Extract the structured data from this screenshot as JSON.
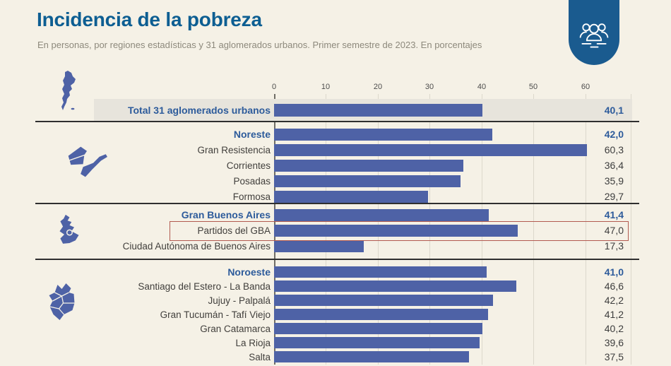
{
  "header": {
    "title": "Incidencia de la pobreza",
    "subtitle": "En personas, por regiones estadísticas y 31 aglomerados urbanos. Primer semestre de 2023. En porcentajes",
    "badge_icon": "people-group-icon"
  },
  "chart_data": {
    "type": "bar",
    "orientation": "horizontal",
    "title": "Incidencia de la pobreza",
    "subtitle": "En personas, por regiones estadísticas y 31 aglomerados urbanos. Primer semestre de 2023. En porcentajes",
    "unit": "percent",
    "xlim": [
      0,
      67
    ],
    "grid": true,
    "ticks": [
      "0",
      "10",
      "20",
      "30",
      "40",
      "50",
      "60"
    ],
    "total": {
      "label": "Total 31 aglomerados urbanos",
      "value": 40.1,
      "display": "40,1",
      "emphasis": true
    },
    "sections": [
      {
        "region": "Noreste",
        "rows": [
          {
            "label": "Noreste",
            "value": 42.0,
            "display": "42,0",
            "emphasis": true
          },
          {
            "label": "Gran Resistencia",
            "value": 60.3,
            "display": "60,3"
          },
          {
            "label": "Corrientes",
            "value": 36.4,
            "display": "36,4"
          },
          {
            "label": "Posadas",
            "value": 35.9,
            "display": "35,9"
          },
          {
            "label": "Formosa",
            "value": 29.7,
            "display": "29,7"
          }
        ]
      },
      {
        "region": "Gran Buenos Aires",
        "highlighted_row": "Partidos del GBA",
        "rows": [
          {
            "label": "Gran Buenos Aires",
            "value": 41.4,
            "display": "41,4",
            "emphasis": true
          },
          {
            "label": "Partidos del GBA",
            "value": 47.0,
            "display": "47,0",
            "highlighted": true
          },
          {
            "label": "Ciudad Autónoma de Buenos Aires",
            "value": 17.3,
            "display": "17,3"
          }
        ]
      },
      {
        "region": "Noroeste",
        "rows": [
          {
            "label": "Noroeste",
            "value": 41.0,
            "display": "41,0",
            "emphasis": true
          },
          {
            "label": "Santiago del Estero - La Banda",
            "value": 46.6,
            "display": "46,6"
          },
          {
            "label": "Jujuy -  Palpalá",
            "value": 42.2,
            "display": "42,2"
          },
          {
            "label": "Gran Tucumán - Tafí Viejo",
            "value": 41.2,
            "display": "41,2"
          },
          {
            "label": "Gran Catamarca",
            "value": 40.2,
            "display": "40,2"
          },
          {
            "label": "La Rioja",
            "value": 39.6,
            "display": "39,6"
          },
          {
            "label": "Salta",
            "value": 37.5,
            "display": "37,5"
          }
        ]
      }
    ],
    "icons": [
      "argentina-map-icon",
      "noreste-region-map-icon",
      "gba-region-map-icon",
      "noroeste-region-map-icon",
      "people-group-icon"
    ],
    "colors": {
      "background": "#f5f1e6",
      "bar": "#4e62a6",
      "title_blue": "#0d5e92",
      "emphasis_blue": "#2d5b9b",
      "badge_blue": "#1a5b8f",
      "highlight_red": "#b25a50",
      "total_band": "#e7e4dc"
    }
  }
}
